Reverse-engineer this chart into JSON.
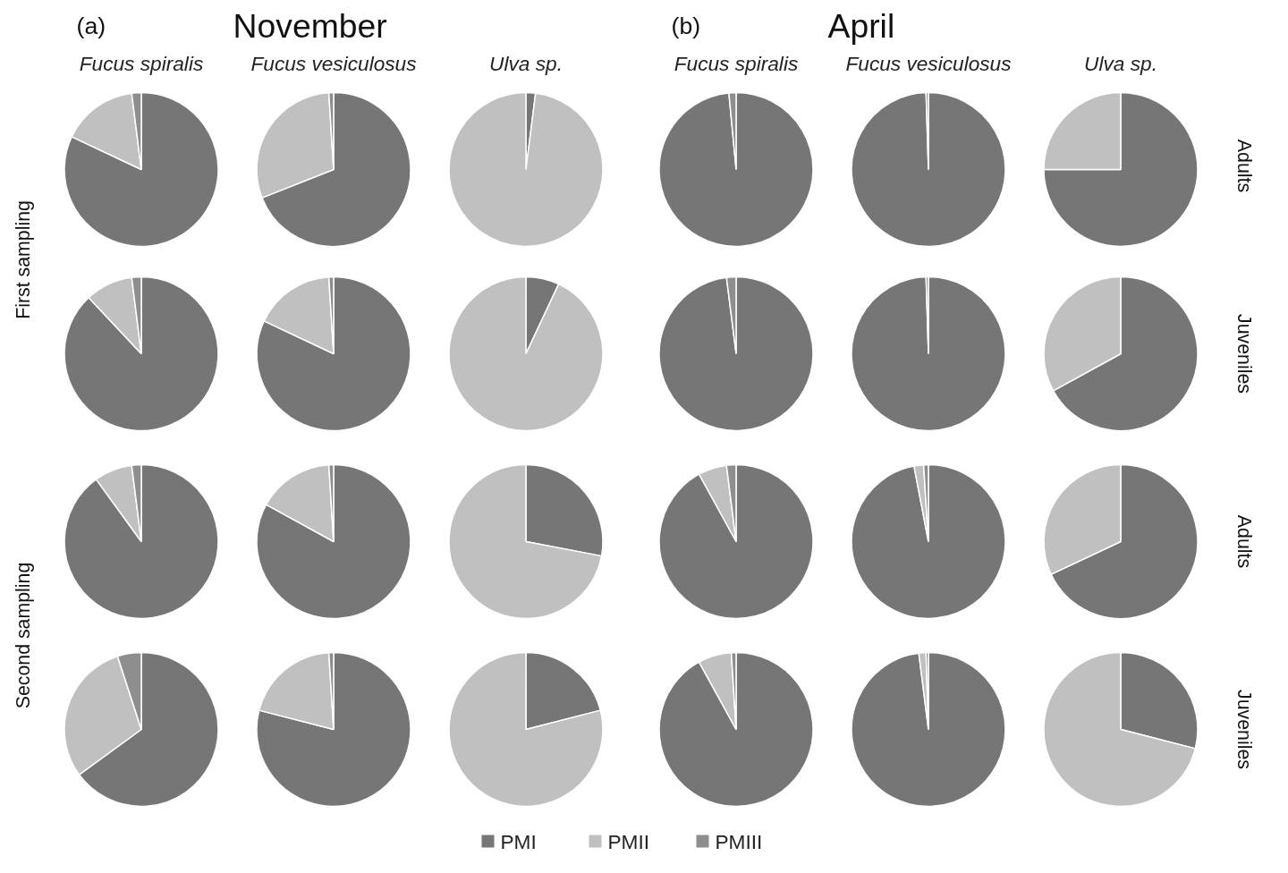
{
  "chart_data": [
    {
      "type": "pie",
      "title": "Fucus spiralis",
      "ylabel": "First sampling",
      "annotations": [
        "(a)",
        "November"
      ],
      "legend": "bottom",
      "categories": [
        "PMI",
        "PMII",
        "PMIII"
      ],
      "values": [
        82,
        16,
        2
      ],
      "colors": [
        "#767676",
        "#c0c0c0",
        "#8e8e8e"
      ]
    },
    {
      "type": "pie",
      "title": "Fucus vesiculosus",
      "categories": [
        null,
        null,
        null
      ],
      "values": [
        69,
        30,
        1
      ],
      "colors": [
        "#767676",
        "#c0c0c0",
        "#8e8e8e"
      ]
    },
    {
      "type": "pie",
      "title": "Ulva sp.",
      "categories": [
        null,
        null,
        null
      ],
      "values": [
        2,
        98,
        0
      ],
      "colors": [
        "#767676",
        "#c0c0c0",
        "#8e8e8e"
      ]
    },
    {
      "type": "pie",
      "title": "Fucus spiralis",
      "annotations": [
        "(b)",
        "April"
      ],
      "categories": [
        null,
        null,
        null
      ],
      "values": [
        98,
        null,
        1.5
      ],
      "colors": [
        "#767676",
        "#c0c0c0",
        "#8e8e8e"
      ]
    },
    {
      "type": "pie",
      "title": "Fucus vesiculosus",
      "categories": [
        null,
        null,
        null
      ],
      "values": [
        99.5,
        0,
        0.5
      ],
      "colors": [
        "#767676",
        "#c0c0c0",
        "#8e8e8e"
      ]
    },
    {
      "type": "pie",
      "title": "Ulva sp.",
      "y2label": "Adults",
      "categories": [
        null,
        null,
        null
      ],
      "values": [
        75,
        25,
        0
      ],
      "colors": [
        "#767676",
        "#c0c0c0",
        "#8e8e8e"
      ]
    },
    {
      "type": "pie",
      "categories": [
        null,
        null,
        null
      ],
      "values": [
        88,
        10,
        2
      ],
      "colors": [
        "#767676",
        "#c0c0c0",
        "#8e8e8e"
      ]
    },
    {
      "type": "pie",
      "categories": [
        null,
        null,
        null
      ],
      "values": [
        82,
        17,
        1
      ],
      "colors": [
        "#767676",
        "#c0c0c0",
        "#8e8e8e"
      ]
    },
    {
      "type": "pie",
      "categories": [
        null,
        null,
        null
      ],
      "values": [
        7,
        93,
        0
      ],
      "colors": [
        "#767676",
        "#c0c0c0",
        "#8e8e8e"
      ]
    },
    {
      "type": "pie",
      "categories": [
        null,
        null,
        null
      ],
      "values": [
        98,
        0,
        2
      ],
      "colors": [
        "#767676",
        "#c0c0c0",
        "#8e8e8e"
      ]
    },
    {
      "type": "pie",
      "categories": [
        null,
        null,
        null
      ],
      "values": [
        99.5,
        0,
        0.5
      ],
      "colors": [
        "#767676",
        "#c0c0c0",
        "#8e8e8e"
      ]
    },
    {
      "type": "pie",
      "y2label": "Juveniles",
      "categories": [
        null,
        null,
        null
      ],
      "values": [
        67,
        33,
        0
      ],
      "colors": [
        "#767676",
        "#c0c0c0",
        "#8e8e8e"
      ]
    },
    {
      "type": "pie",
      "ylabel": "Second sampling",
      "categories": [
        null,
        null,
        null
      ],
      "values": [
        90,
        8,
        2
      ],
      "colors": [
        "#767676",
        "#c0c0c0",
        "#8e8e8e"
      ]
    },
    {
      "type": "pie",
      "categories": [
        null,
        null,
        null
      ],
      "values": [
        83,
        16,
        1
      ],
      "colors": [
        "#767676",
        "#c0c0c0",
        "#8e8e8e"
      ]
    },
    {
      "type": "pie",
      "categories": [
        null,
        null,
        null
      ],
      "values": [
        28,
        72,
        0
      ],
      "colors": [
        "#767676",
        "#c0c0c0",
        "#8e8e8e"
      ]
    },
    {
      "type": "pie",
      "categories": [
        null,
        null,
        null
      ],
      "values": [
        92,
        6,
        2
      ],
      "colors": [
        "#767676",
        "#c0c0c0",
        "#8e8e8e"
      ]
    },
    {
      "type": "pie",
      "categories": [
        null,
        null,
        null
      ],
      "values": [
        97,
        2,
        1
      ],
      "colors": [
        "#767676",
        "#c0c0c0",
        "#8e8e8e"
      ]
    },
    {
      "type": "pie",
      "y2label": "Adults",
      "categories": [
        null,
        null,
        null
      ],
      "values": [
        68,
        32,
        0
      ],
      "colors": [
        "#767676",
        "#c0c0c0",
        "#8e8e8e"
      ]
    },
    {
      "type": "pie",
      "categories": [
        null,
        null,
        null
      ],
      "values": [
        65,
        30,
        5
      ],
      "colors": [
        "#767676",
        "#c0c0c0",
        "#8e8e8e"
      ]
    },
    {
      "type": "pie",
      "categories": [
        null,
        null,
        null
      ],
      "values": [
        79,
        20,
        1
      ],
      "colors": [
        "#767676",
        "#c0c0c0",
        "#8e8e8e"
      ]
    },
    {
      "type": "pie",
      "categories": [
        null,
        null,
        null
      ],
      "values": [
        21,
        79,
        0
      ],
      "colors": [
        "#767676",
        "#c0c0c0",
        "#8e8e8e"
      ]
    },
    {
      "type": "pie",
      "categories": [
        null,
        null,
        null
      ],
      "values": [
        92,
        7,
        1
      ],
      "colors": [
        "#767676",
        "#c0c0c0",
        "#8e8e8e"
      ]
    },
    {
      "type": "pie",
      "categories": [
        null,
        null,
        null
      ],
      "values": [
        98,
        1.5,
        0.5
      ],
      "colors": [
        "#767676",
        "#c0c0c0",
        "#8e8e8e"
      ]
    },
    {
      "type": "pie",
      "y2label": "Juveniles",
      "categories": [
        null,
        null,
        null
      ],
      "values": [
        29,
        71,
        0
      ],
      "colors": [
        "#767676",
        "#c0c0c0",
        "#8e8e8e"
      ]
    }
  ]
}
